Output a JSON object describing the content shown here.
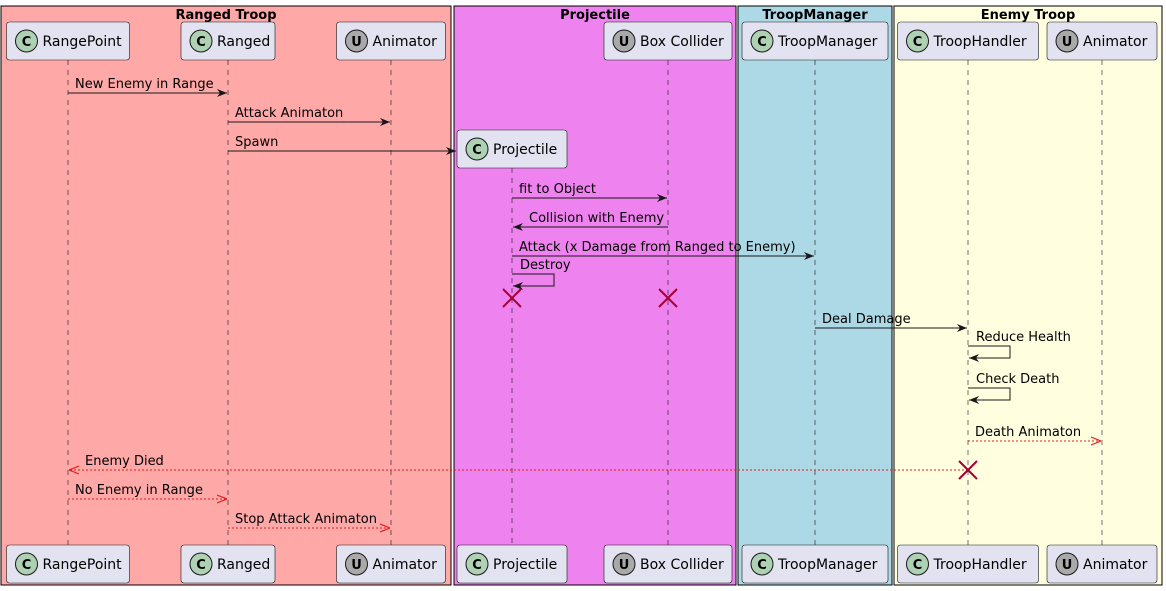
{
  "colors": {
    "arrow_solid": "#181818",
    "arrow_return": "#e51c1c",
    "destroy": "#a80036",
    "participant_fill": "#e2e2f0",
    "participant_border": "#181818",
    "class_badge": "#add1b2",
    "unity_badge": "#a9a9a9"
  },
  "groups": [
    {
      "id": "ranged-troop",
      "title": "Ranged Troop",
      "color": "#ffa8a8"
    },
    {
      "id": "projectile",
      "title": "Projectile",
      "color": "#ee82ee"
    },
    {
      "id": "troop-manager",
      "title": "TroopManager",
      "color": "#add8e6"
    },
    {
      "id": "enemy-troop",
      "title": "Enemy Troop",
      "color": "#ffffe0"
    }
  ],
  "participants": [
    {
      "id": "rangepoint",
      "label": "RangePoint",
      "badge": "C"
    },
    {
      "id": "ranged",
      "label": "Ranged",
      "badge": "C"
    },
    {
      "id": "animator-1",
      "label": "Animator",
      "badge": "U"
    },
    {
      "id": "projectile",
      "label": "Projectile",
      "badge": "C"
    },
    {
      "id": "box-collider",
      "label": "Box Collider",
      "badge": "U"
    },
    {
      "id": "troopmanager",
      "label": "TroopManager",
      "badge": "C"
    },
    {
      "id": "troophandler",
      "label": "TroopHandler",
      "badge": "C"
    },
    {
      "id": "animator-2",
      "label": "Animator",
      "badge": "U"
    }
  ],
  "messages": [
    {
      "from": "rangepoint",
      "to": "ranged",
      "label": "New Enemy in Range",
      "style": "solid"
    },
    {
      "from": "ranged",
      "to": "animator-1",
      "label": "Attack Animaton",
      "style": "solid"
    },
    {
      "from": "ranged",
      "to": "projectile",
      "label": "Spawn",
      "style": "create"
    },
    {
      "from": "projectile",
      "to": "box-collider",
      "label": "fit to Object",
      "style": "solid"
    },
    {
      "from": "box-collider",
      "to": "projectile",
      "label": "Collision with Enemy",
      "style": "solid"
    },
    {
      "from": "projectile",
      "to": "troopmanager",
      "label": "Attack (x Damage from Ranged to Enemy)",
      "style": "solid"
    },
    {
      "from": "projectile",
      "to": "projectile",
      "label": "Destroy",
      "style": "self"
    },
    {
      "from": "troopmanager",
      "to": "troophandler",
      "label": "Deal Damage",
      "style": "solid"
    },
    {
      "from": "troophandler",
      "to": "troophandler",
      "label": "Reduce Health",
      "style": "self"
    },
    {
      "from": "troophandler",
      "to": "troophandler",
      "label": "Check Death",
      "style": "self"
    },
    {
      "from": "troophandler",
      "to": "animator-2",
      "label": "Death Animaton",
      "style": "return"
    },
    {
      "from": "troophandler",
      "to": "rangepoint",
      "label": "Enemy Died",
      "style": "return"
    },
    {
      "from": "rangepoint",
      "to": "ranged",
      "label": "No Enemy in Range",
      "style": "return"
    },
    {
      "from": "ranged",
      "to": "animator-1",
      "label": "Stop Attack Animaton",
      "style": "return"
    }
  ],
  "destroyed": [
    "projectile",
    "box-collider",
    "troophandler"
  ]
}
